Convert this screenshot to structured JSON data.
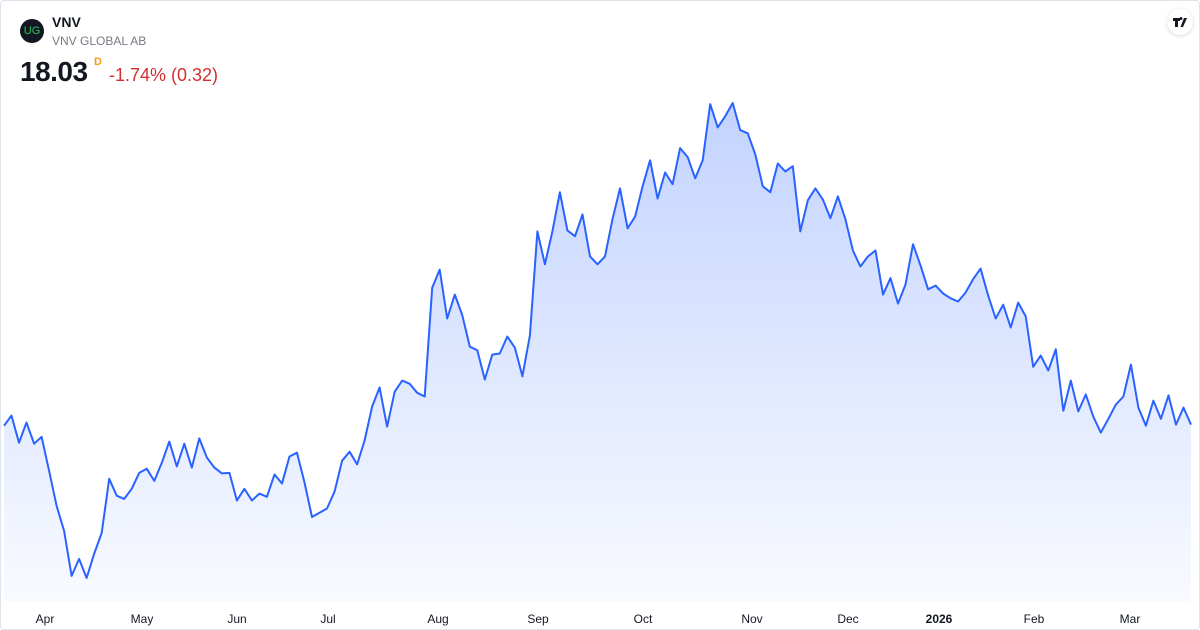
{
  "header": {
    "logo": "UG",
    "ticker": "VNV",
    "company": "VNV GLOBAL AB",
    "price": "18.03",
    "price_suffix": "D",
    "change": "-1.74% (0.32)"
  },
  "chart_data": {
    "type": "area",
    "color": "#2962ff",
    "x_labels": [
      "Apr",
      "May",
      "Jun",
      "Jul",
      "Aug",
      "Sep",
      "Oct",
      "Nov",
      "Dec",
      "2026",
      "Feb",
      "Mar"
    ],
    "values": [
      18.01,
      18.2,
      17.69,
      18.07,
      17.67,
      17.8,
      17.16,
      16.5,
      16.03,
      15.18,
      15.5,
      15.14,
      15.6,
      15.99,
      17.01,
      16.69,
      16.63,
      16.82,
      17.12,
      17.2,
      16.97,
      17.31,
      17.71,
      17.24,
      17.67,
      17.22,
      17.77,
      17.41,
      17.22,
      17.11,
      17.12,
      16.6,
      16.82,
      16.6,
      16.73,
      16.67,
      17.09,
      16.92,
      17.43,
      17.5,
      16.94,
      16.29,
      16.37,
      16.45,
      16.77,
      17.35,
      17.52,
      17.28,
      17.73,
      18.37,
      18.73,
      17.99,
      18.65,
      18.86,
      18.8,
      18.63,
      18.56,
      20.61,
      20.95,
      20.03,
      20.48,
      20.09,
      19.5,
      19.43,
      18.88,
      19.35,
      19.37,
      19.69,
      19.48,
      18.94,
      19.71,
      21.67,
      21.05,
      21.67,
      22.41,
      21.69,
      21.58,
      21.99,
      21.2,
      21.05,
      21.2,
      21.9,
      22.48,
      21.73,
      21.95,
      22.52,
      23.01,
      22.29,
      22.78,
      22.56,
      23.24,
      23.07,
      22.67,
      23.01,
      24.07,
      23.63,
      23.84,
      24.09,
      23.58,
      23.52,
      23.12,
      22.52,
      22.41,
      22.95,
      22.8,
      22.9,
      21.67,
      22.26,
      22.48,
      22.27,
      21.92,
      22.33,
      21.9,
      21.31,
      21.01,
      21.2,
      21.31,
      20.48,
      20.79,
      20.31,
      20.67,
      21.43,
      21.03,
      20.58,
      20.65,
      20.5,
      20.41,
      20.35,
      20.52,
      20.77,
      20.97,
      20.46,
      20.03,
      20.29,
      19.86,
      20.33,
      20.07,
      19.12,
      19.33,
      19.05,
      19.45,
      18.29,
      18.86,
      18.28,
      18.6,
      18.18,
      17.88,
      18.14,
      18.41,
      18.56,
      19.16,
      18.35,
      18.01,
      18.48,
      18.14,
      18.58,
      18.03,
      18.35,
      18.03
    ]
  }
}
